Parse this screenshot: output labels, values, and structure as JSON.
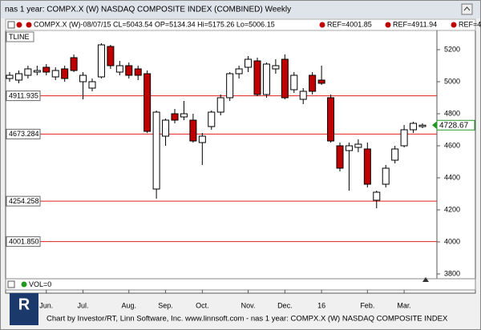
{
  "chart_data": {
    "type": "candlestick",
    "title": "nas 1 year: COMPX.X (W) NASDAQ COMPOSITE INDEX (COMBINED) Weekly",
    "legend_main": "COMPX.X (W)-08/07/15 CL=5043.54 OP=5134.34 Hi=5175.26 Lo=5006.15",
    "legend_refs": [
      "REF=4001.85",
      "REF=4911.94",
      "REF=4"
    ],
    "tool_label": "TLINE",
    "volume_label": "VOL=0",
    "footer": "Chart by Investor/RT, Linn Software, Inc. www.linnsoft.com - nas 1 year: COMPX.X (W) NASDAQ COMPOSITE INDEX",
    "logo": "R",
    "categories": [
      null,
      null,
      null,
      null,
      "Jun.",
      null,
      null,
      null,
      "Jul.",
      null,
      null,
      null,
      null,
      "Aug.",
      null,
      null,
      null,
      "Sep.",
      null,
      null,
      null,
      "Oct.",
      null,
      null,
      null,
      null,
      "Nov.",
      null,
      null,
      null,
      "Dec.",
      null,
      null,
      null,
      "16",
      null,
      null,
      null,
      null,
      "Feb.",
      null,
      null,
      null,
      "Mar.",
      null,
      null
    ],
    "open": [
      5020,
      5010,
      5040,
      5060,
      5090,
      5030,
      5080,
      5150,
      5000,
      4960,
      5030,
      5220,
      5060,
      5100,
      5080,
      5050,
      4330,
      4660,
      4800,
      4780,
      4760,
      4620,
      4720,
      4810,
      4900,
      5050,
      5090,
      5130,
      4920,
      5080,
      5140,
      4950,
      4890,
      5040,
      5010,
      4900,
      4600,
      4570,
      4590,
      4580,
      4260,
      4360,
      4510,
      4600,
      4700,
      4720
    ],
    "high": [
      5060,
      5070,
      5100,
      5100,
      5110,
      5090,
      5100,
      5170,
      5060,
      5020,
      5240,
      5230,
      5130,
      5120,
      5100,
      5070,
      4820,
      4770,
      4830,
      4880,
      4800,
      4680,
      4820,
      4920,
      5060,
      5100,
      5160,
      5150,
      5120,
      5140,
      5170,
      5060,
      4960,
      5060,
      5100,
      4920,
      4620,
      4620,
      4640,
      4620,
      4320,
      4480,
      4600,
      4730,
      4750,
      4740
    ],
    "low": [
      5000,
      4990,
      5020,
      5040,
      5040,
      5010,
      5000,
      5060,
      4890,
      4940,
      5020,
      5080,
      5040,
      5020,
      5010,
      4680,
      4270,
      4600,
      4740,
      4760,
      4620,
      4480,
      4700,
      4790,
      4880,
      5020,
      5060,
      4910,
      4900,
      5050,
      4890,
      4930,
      4860,
      4920,
      4980,
      4620,
      4440,
      4320,
      4560,
      4340,
      4210,
      4340,
      4490,
      4590,
      4680,
      4710
    ],
    "close": [
      5040,
      5050,
      5080,
      5070,
      5060,
      5070,
      5020,
      5070,
      5040,
      5000,
      5230,
      5100,
      5100,
      5040,
      5040,
      4690,
      4810,
      4760,
      4760,
      4800,
      4630,
      4660,
      4810,
      4900,
      5050,
      5080,
      5140,
      4920,
      5110,
      5100,
      4900,
      5040,
      4940,
      4940,
      4990,
      4630,
      4460,
      4600,
      4610,
      4360,
      4310,
      4460,
      4580,
      4700,
      4740,
      4728.67
    ],
    "up_color": "#ffffff",
    "down_color": "#c00000",
    "last_value": 4728.67,
    "last_color": "#1f9a1f",
    "ref_lines": [
      {
        "value": 4911.935,
        "label": "4911.935"
      },
      {
        "value": 4673.284,
        "label": "4673.284"
      },
      {
        "value": 4254.258,
        "label": "4254.258"
      },
      {
        "value": 4001.85,
        "label": "4001.850"
      }
    ],
    "ref_color": "#e02020",
    "ylim": [
      3780,
      5310
    ],
    "yticks": [
      3800,
      4000,
      4200,
      4400,
      4600,
      4800,
      5000,
      5200
    ]
  }
}
